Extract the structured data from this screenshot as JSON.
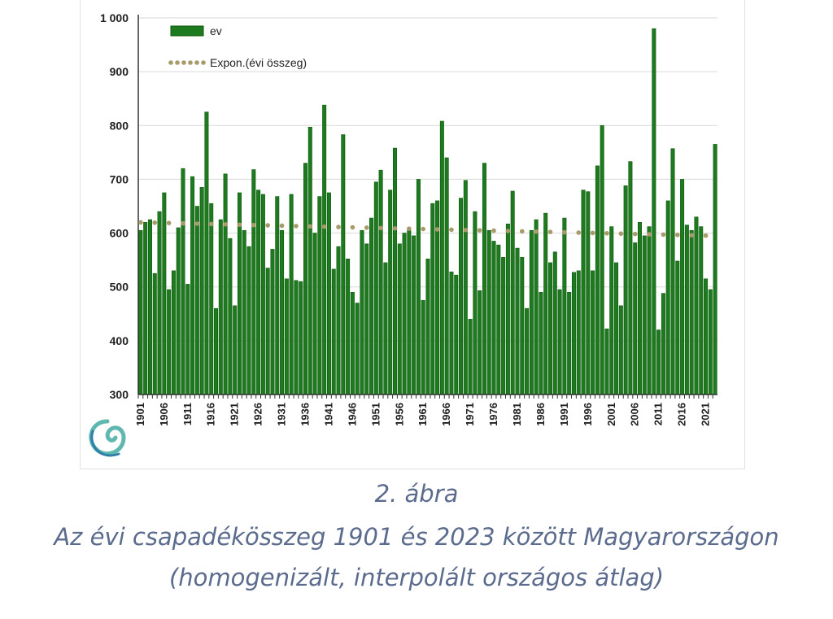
{
  "chart_data": {
    "type": "bar",
    "title": "",
    "xlabel": "",
    "ylabel": "",
    "ylim": [
      300,
      1000
    ],
    "yticks": [
      "300",
      "400",
      "500",
      "600",
      "700",
      "800",
      "900",
      "1 000"
    ],
    "ytick_values": [
      300,
      400,
      500,
      600,
      700,
      800,
      900,
      1000
    ],
    "grid": true,
    "legend_placement": "top-left",
    "x_start": 1901,
    "x_end": 2023,
    "xtick_labels": [
      "1901",
      "1906",
      "1911",
      "1916",
      "1921",
      "1926",
      "1931",
      "1936",
      "1941",
      "1946",
      "1951",
      "1956",
      "1961",
      "1966",
      "1971",
      "1976",
      "1981",
      "1986",
      "1991",
      "1996",
      "2001",
      "2006",
      "2011",
      "2016",
      "2021"
    ],
    "series": [
      {
        "name": "ev",
        "color": "#1e7a1e",
        "values": [
          605,
          620,
          625,
          525,
          640,
          675,
          495,
          530,
          610,
          720,
          505,
          705,
          650,
          685,
          825,
          655,
          460,
          625,
          710,
          590,
          465,
          675,
          605,
          575,
          718,
          680,
          672,
          535,
          570,
          668,
          605,
          515,
          672,
          512,
          510,
          730,
          797,
          600,
          668,
          838,
          675,
          533,
          575,
          783,
          552,
          490,
          470,
          605,
          580,
          628,
          695,
          717,
          545,
          680,
          758,
          580,
          600,
          605,
          595,
          700,
          475,
          552,
          655,
          660,
          808,
          740,
          528,
          522,
          665,
          698,
          440,
          640,
          493,
          730,
          605,
          585,
          578,
          555,
          617,
          678,
          572,
          555,
          460,
          605,
          625,
          490,
          637,
          545,
          565,
          495,
          628,
          490,
          527,
          530,
          680,
          677,
          530,
          725,
          800,
          422,
          612,
          545,
          465,
          688,
          733,
          582,
          620,
          595,
          612,
          980,
          420,
          488,
          660,
          757,
          548,
          700,
          615,
          605,
          630,
          612,
          515,
          495,
          765
        ]
      },
      {
        "name": "Expon.(évi összeg)",
        "type": "trend-exponential",
        "color": "#a89a6a",
        "start_value": 620,
        "end_value": 595
      }
    ]
  },
  "caption": {
    "line1": "2. ábra",
    "line2": "Az évi csapadékösszeg 1901 és 2023 között Magyarországon",
    "line3": "(homogenizált, interpolált országos átlag)"
  },
  "logo": {
    "icon": "swirl-logo-icon",
    "color": "#5fb8b0"
  }
}
